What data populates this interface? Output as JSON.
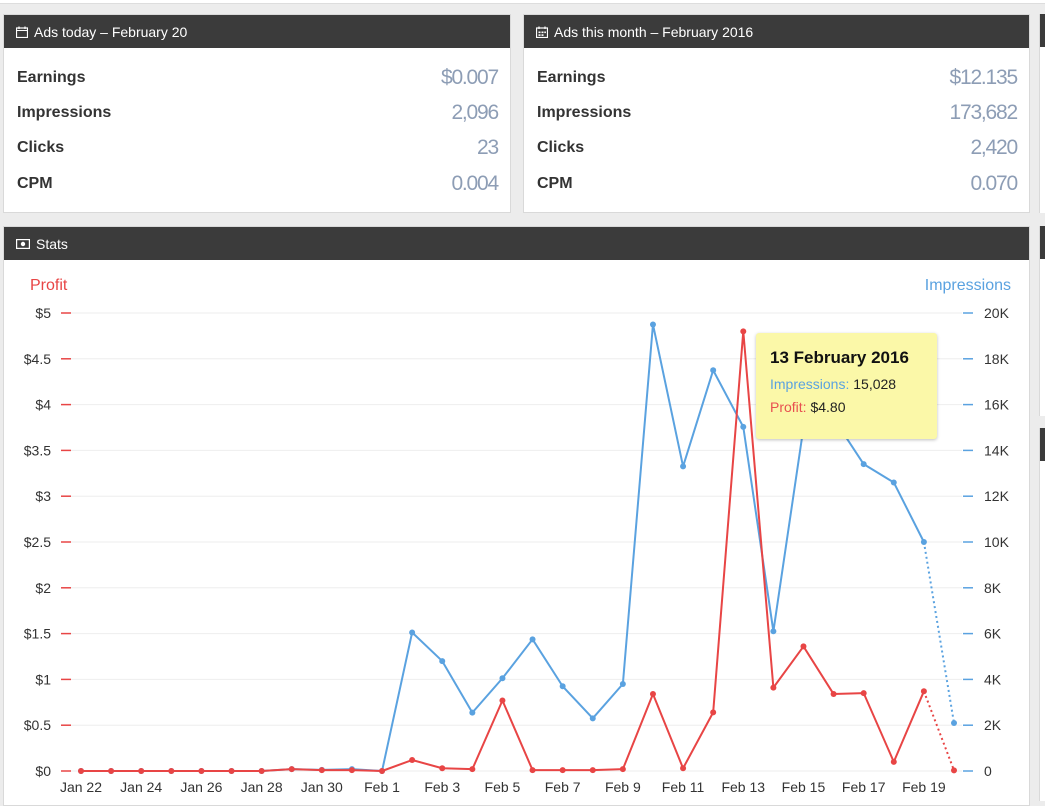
{
  "today_panel": {
    "title": "Ads today – February 20",
    "icon": "calendar-icon",
    "rows": [
      {
        "label": "Earnings",
        "value": "$0.007"
      },
      {
        "label": "Impressions",
        "value": "2,096"
      },
      {
        "label": "Clicks",
        "value": "23"
      },
      {
        "label": "CPM",
        "value": "0.004"
      }
    ]
  },
  "month_panel": {
    "title": "Ads this month – February 2016",
    "icon": "calendar-month-icon",
    "rows": [
      {
        "label": "Earnings",
        "value": "$12.135"
      },
      {
        "label": "Impressions",
        "value": "173,682"
      },
      {
        "label": "Clicks",
        "value": "2,420"
      },
      {
        "label": "CPM",
        "value": "0.070"
      }
    ]
  },
  "stats_panel": {
    "title": "Stats",
    "icon": "money-icon"
  },
  "tooltip": {
    "title": "13 February 2016",
    "impressions_label": "Impressions:",
    "impressions_value": "15,028",
    "profit_label": "Profit:",
    "profit_value": "$4.80"
  },
  "chart_data": {
    "type": "line",
    "y_left_label": "Profit",
    "y_right_label": "Impressions",
    "y_left_ticks": [
      "$0",
      "$0.5",
      "$1",
      "$1.5",
      "$2",
      "$2.5",
      "$3",
      "$3.5",
      "$4",
      "$4.5",
      "$5"
    ],
    "y_right_ticks": [
      "0",
      "2K",
      "4K",
      "6K",
      "8K",
      "10K",
      "12K",
      "14K",
      "16K",
      "18K",
      "20K"
    ],
    "ylim_left": [
      0,
      5
    ],
    "ylim_right": [
      0,
      20000
    ],
    "x": [
      "Jan 22",
      "Jan 23",
      "Jan 24",
      "Jan 25",
      "Jan 26",
      "Jan 27",
      "Jan 28",
      "Jan 29",
      "Jan 30",
      "Jan 31",
      "Feb 1",
      "Feb 2",
      "Feb 3",
      "Feb 4",
      "Feb 5",
      "Feb 6",
      "Feb 7",
      "Feb 8",
      "Feb 9",
      "Feb 10",
      "Feb 11",
      "Feb 12",
      "Feb 13",
      "Feb 14",
      "Feb 15",
      "Feb 16",
      "Feb 17",
      "Feb 18",
      "Feb 19",
      "Feb 20"
    ],
    "x_tick_labels": [
      "Jan 22",
      "Jan 24",
      "Jan 26",
      "Jan 28",
      "Jan 30",
      "Feb 1",
      "Feb 3",
      "Feb 5",
      "Feb 7",
      "Feb 9",
      "Feb 11",
      "Feb 13",
      "Feb 15",
      "Feb 17",
      "Feb 19"
    ],
    "series": [
      {
        "name": "Impressions",
        "axis": "right",
        "color": "#5aa2e0",
        "values": [
          0,
          0,
          0,
          0,
          0,
          0,
          0,
          80,
          50,
          80,
          0,
          6050,
          4800,
          2550,
          4050,
          5750,
          3700,
          2300,
          3800,
          19500,
          13300,
          17500,
          15028,
          6100,
          15000,
          15400,
          13400,
          12600,
          10000,
          2096
        ],
        "dashed_last_segment": true
      },
      {
        "name": "Profit",
        "axis": "left",
        "color": "#e84545",
        "values": [
          0,
          0,
          0,
          0,
          0,
          0,
          0,
          0.02,
          0.01,
          0.01,
          0,
          0.12,
          0.03,
          0.02,
          0.77,
          0.01,
          0.01,
          0.01,
          0.02,
          0.84,
          0.03,
          0.64,
          4.8,
          0.91,
          1.36,
          0.84,
          0.85,
          0.1,
          0.87,
          0.007
        ],
        "dashed_last_segment": true
      }
    ],
    "grid": true,
    "legend": "axis titles"
  }
}
